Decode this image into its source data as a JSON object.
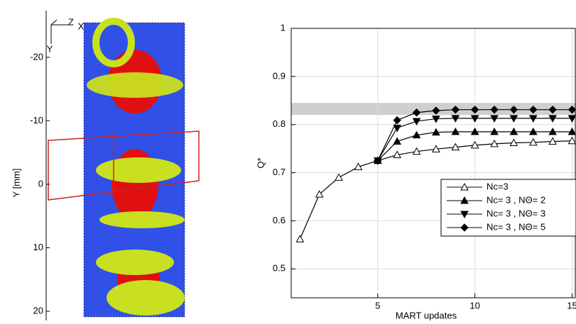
{
  "chart_data": [
    {
      "type": "image",
      "ylabel": "Y [mm]",
      "ylim": [
        -24,
        21
      ],
      "yticks": [
        -20,
        -10,
        0,
        10,
        20
      ],
      "triad_labels": [
        "Z",
        "X",
        "Y"
      ]
    },
    {
      "type": "line",
      "xlabel": "MART updates",
      "ylabel": "Q*",
      "x": [
        1,
        2,
        3,
        4,
        5,
        6,
        7,
        8,
        9,
        10,
        11,
        12,
        13,
        14,
        15
      ],
      "xlim": [
        0.55,
        15.2
      ],
      "xticks": [
        5,
        10,
        15
      ],
      "ylim": [
        0.44,
        1
      ],
      "yticks": [
        0.5,
        0.6,
        0.7,
        0.8,
        0.9,
        1
      ],
      "grid": true,
      "legend": "lower right",
      "band": [
        0.82,
        0.845
      ],
      "band_color": "#cfcfcf",
      "series": [
        {
          "name": "Nc=3",
          "color": "#000000",
          "marker": "triangle-up-open",
          "values": [
            0.562,
            0.655,
            0.69,
            0.712,
            0.725,
            0.737,
            0.744,
            0.749,
            0.753,
            0.757,
            0.76,
            0.762,
            0.763,
            0.765,
            0.766
          ]
        },
        {
          "name": "Nc= 3 , NΘ= 2",
          "color": "#000000",
          "marker": "triangle-up",
          "values": [
            null,
            null,
            null,
            null,
            0.725,
            0.765,
            0.778,
            0.784,
            0.785,
            0.785,
            0.785,
            0.785,
            0.785,
            0.785,
            0.785
          ]
        },
        {
          "name": "Nc= 3 , NΘ= 3",
          "color": "#000000",
          "marker": "triangle-down",
          "values": [
            null,
            null,
            null,
            null,
            0.725,
            0.793,
            0.807,
            0.812,
            0.813,
            0.813,
            0.813,
            0.813,
            0.813,
            0.813,
            0.813
          ]
        },
        {
          "name": "Nc= 3 , NΘ= 5",
          "color": "#000000",
          "marker": "diamond",
          "values": [
            null,
            null,
            null,
            null,
            0.725,
            0.809,
            0.825,
            0.829,
            0.831,
            0.831,
            0.831,
            0.831,
            0.831,
            0.831,
            0.831
          ]
        }
      ]
    }
  ]
}
